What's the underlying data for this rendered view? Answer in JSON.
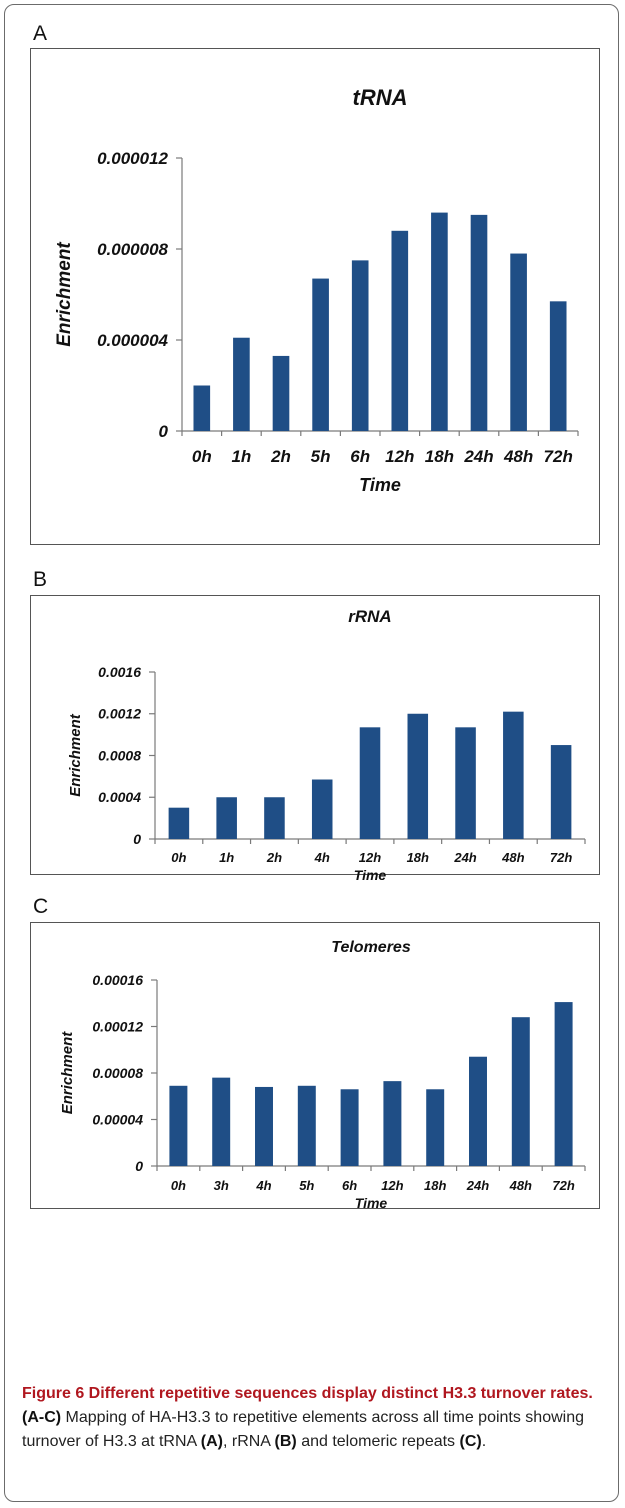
{
  "panels": [
    {
      "letter": "A",
      "chart_data": {
        "type": "bar",
        "title": "tRNA",
        "xlabel": "Time",
        "ylabel": "Enrichment",
        "categories": [
          "0h",
          "1h",
          "2h",
          "5h",
          "6h",
          "12h",
          "18h",
          "24h",
          "48h",
          "72h"
        ],
        "values": [
          2e-06,
          4.1e-06,
          3.3e-06,
          6.7e-06,
          7.5e-06,
          8.8e-06,
          9.6e-06,
          9.5e-06,
          7.8e-06,
          5.7e-06
        ],
        "yticks": [
          "0",
          "0.000004",
          "0.000008",
          "0.000012"
        ],
        "ylim": [
          0,
          1.2e-05
        ],
        "grid": false,
        "bar_color": "#1f4e86"
      }
    },
    {
      "letter": "B",
      "chart_data": {
        "type": "bar",
        "title": "rRNA",
        "xlabel": "Time",
        "ylabel": "Enrichment",
        "categories": [
          "0h",
          "1h",
          "2h",
          "4h",
          "12h",
          "18h",
          "24h",
          "48h",
          "72h"
        ],
        "values": [
          0.0003,
          0.0004,
          0.0004,
          0.00057,
          0.00107,
          0.0012,
          0.00107,
          0.00122,
          0.0009
        ],
        "yticks": [
          "0",
          "0.0004",
          "0.0008",
          "0.0012",
          "0.0016"
        ],
        "ylim": [
          0,
          0.0016
        ],
        "grid": false,
        "bar_color": "#1f4e86"
      }
    },
    {
      "letter": "C",
      "chart_data": {
        "type": "bar",
        "title": "Telomeres",
        "xlabel": "Time",
        "ylabel": "Enrichment",
        "categories": [
          "0h",
          "3h",
          "4h",
          "5h",
          "6h",
          "12h",
          "18h",
          "24h",
          "48h",
          "72h"
        ],
        "values": [
          6.9e-05,
          7.6e-05,
          6.8e-05,
          6.9e-05,
          6.6e-05,
          7.3e-05,
          6.6e-05,
          9.4e-05,
          0.000128,
          0.000141
        ],
        "yticks": [
          "0",
          "0.00004",
          "0.00008",
          "0.00012",
          "0.00016"
        ],
        "ylim": [
          0,
          0.00016
        ],
        "grid": false,
        "bar_color": "#1f4e86"
      }
    }
  ],
  "caption": {
    "bold": "Figure 6 Different repetitive sequences display distinct H3.3 turnover rates.",
    "range_ref": "(A-C)",
    "text1": " Mapping of HA-H3.3 to repetitive elements across all time points showing turnover of H3.3 at tRNA ",
    "ref_a": "(A)",
    "text2": ", rRNA ",
    "ref_b": "(B)",
    "text3": " and telomeric repeats ",
    "ref_c": "(C)",
    "text4": "."
  }
}
